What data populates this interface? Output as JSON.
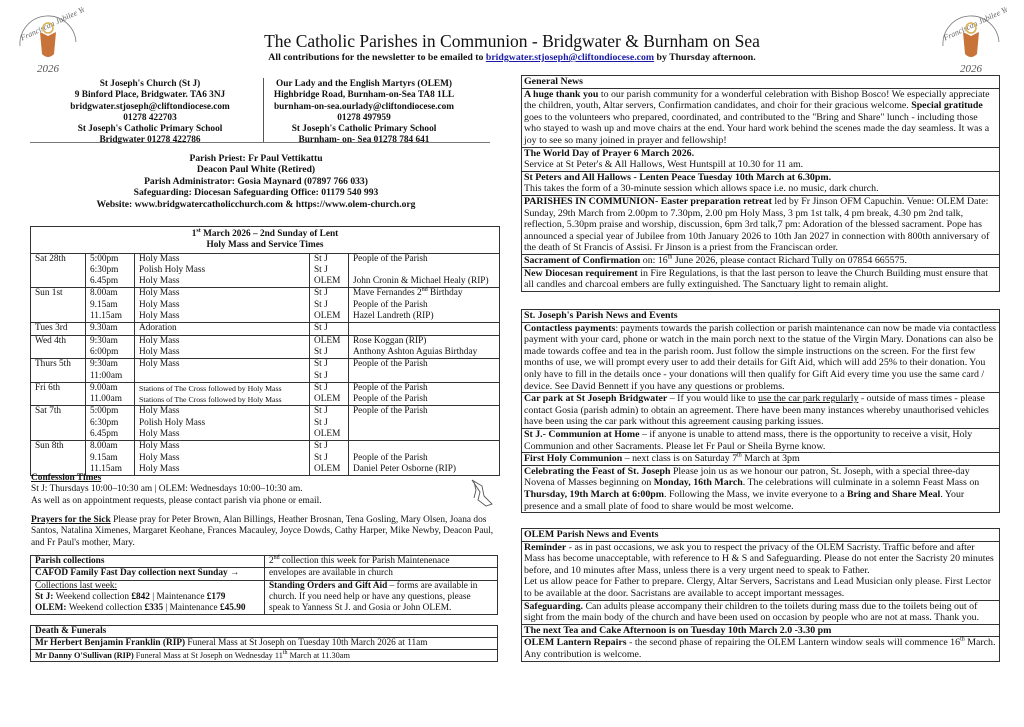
{
  "header": {
    "title": "The Catholic Parishes in Communion - Bridgwater & Burnham on Sea",
    "subtitle_before": "All contributions for the newsletter to be emailed to ",
    "subtitle_email": "bridgwater.stjoseph@cliftondiocese.com",
    "subtitle_after": " by Thursday afternoon.",
    "logo_text": "Franciscan Jubilee Year",
    "logo_year": "2026",
    "logo_color": "#c8733a"
  },
  "addresses": {
    "left": [
      "St Joseph's Church (St J)",
      "9 Binford Place, Bridgwater. TA6 3NJ",
      "bridgwater.stjoseph@cliftondiocese.com",
      "01278 422703",
      "St Joseph's Catholic Primary School",
      "Bridgwater 01278 422786"
    ],
    "right": [
      "Our Lady and the English Martyrs (OLEM)",
      "Highbridge Road, Burnham-on-Sea TA8 1LL",
      "burnham-on-sea.ourlady@cliftondiocese.com",
      "01278 497959",
      "St Joseph's Catholic Primary School",
      "Burnham- on- Sea 01278 784 641"
    ]
  },
  "clergy": [
    "Parish Priest: Fr Paul Vettikattu",
    "Deacon Paul White (Retired)",
    "Parish Administrator: Gosia Maynard (07897 766 033)",
    "Safeguarding: Diocesan Safeguarding Office: 01179 540 993",
    "Website: www.bridgwatercatholicchurch.com & https://www.olem-church.org"
  ],
  "mass_table": {
    "heading_date": "1",
    "heading_sup": "st",
    "heading_rest": " March 2026 – 2nd Sunday of Lent",
    "heading_line2": "Holy Mass and Service Times",
    "days": [
      {
        "day": "Sat 28th",
        "entries": [
          [
            "5:00pm",
            "Holy Mass",
            "St J",
            "People of the Parish"
          ],
          [
            "6:30pm",
            "Polish Holy Mass",
            "St J",
            ""
          ],
          [
            "6.45pm",
            "Holy Mass",
            "OLEM",
            "John Cronin & Michael Healy (RIP)"
          ]
        ]
      },
      {
        "day": "Sun 1st",
        "entries": [
          [
            "8.00am",
            "Holy Mass",
            "St J",
            "Mave Fernandes 2nd Birthday"
          ],
          [
            "9.15am",
            "Holy Mass",
            "St J",
            "People of the Parish"
          ],
          [
            "11.15am",
            "Holy Mass",
            "OLEM",
            "Hazel Landreth (RIP)"
          ]
        ]
      },
      {
        "day": "Tues 3rd",
        "entries": [
          [
            "9.30am",
            "Adoration",
            "St J",
            ""
          ]
        ]
      },
      {
        "day": "Wed 4th",
        "entries": [
          [
            "9:30am",
            "Holy Mass",
            "OLEM",
            "Rose Koggan (RIP)"
          ],
          [
            "6:00pm",
            "Holy Mass",
            "St J",
            "Anthony Ashton Aguias Birthday"
          ]
        ]
      },
      {
        "day": "Thurs 5th",
        "entries": [
          [
            "9:30am",
            "Holy Mass",
            "St J",
            "People of the Parish"
          ],
          [
            "11:00am",
            "",
            "St J",
            ""
          ]
        ]
      },
      {
        "day": "Fri 6th",
        "entries": [
          [
            "9.00am",
            "Stations of The Cross followed by Holy Mass",
            "St J",
            "People of the Parish"
          ],
          [
            "11.00am",
            "Stations of The Cross followed by Holy Mass",
            "OLEM",
            "People of the Parish"
          ]
        ]
      },
      {
        "day": "Sat 7th",
        "entries": [
          [
            "5:00pm",
            "Holy Mass",
            "St J",
            "People of the Parish"
          ],
          [
            "6:30pm",
            "Polish Holy Mass",
            "St J",
            ""
          ],
          [
            "6.45pm",
            "Holy Mass",
            "OLEM",
            ""
          ]
        ]
      },
      {
        "day": "Sun 8th",
        "entries": [
          [
            "8.00am",
            "Holy Mass",
            "St J",
            ""
          ],
          [
            "9.15am",
            "Holy Mass",
            "St J",
            "People of the Parish"
          ],
          [
            "11.15am",
            "Holy Mass",
            "OLEM",
            "Daniel Peter Osborne (RIP)"
          ]
        ]
      }
    ]
  },
  "confession": {
    "title": "Confession Times",
    "line1": "St J: Thursdays 10:00–10:30 am | OLEM: Wednesdays 10:00–10:30 am.",
    "line2": "As well as on appointment requests, please contact parish via phone or email."
  },
  "prayers": {
    "title": "Prayers for the Sick",
    "text": " Please pray for Peter Brown, Alan Billings, Heather Brosnan, Tena Gosling, Mary Olsen, Joana dos Santos, Natalina Ximenes, Margaret Keohane, Frances Macauley, Joyce Dowds, Cathy Harper, Mike Newby, Deacon Paul, and Fr Paul's mother, Mary."
  },
  "collections": {
    "title": "Parish collections",
    "second_collection_sup": "nd",
    "second_collection": "2",
    "second_collection_rest": " collection this week for Parish Maintenenace",
    "cafod": "CAFOD Family Fast Day collection next Sunday →",
    "envelopes": "envelopes are available in church",
    "last_week_label": "Collections last week:",
    "stj_prefix": "St J: ",
    "stj_text": "Weekend collection ",
    "stj_weekend": "£842",
    "stj_mid": " | Maintenance ",
    "stj_maint": "£179",
    "olem_prefix": "OLEM: ",
    "olem_text": "Weekend collection ",
    "olem_weekend": "£335",
    "olem_mid": " | Maintenance ",
    "olem_maint": "£45.90",
    "standing_title": "Standing Orders and Gift Aid",
    "standing_text": " – forms are available in church. If you need help or have any questions, please speak to Yanness St J. and Gosia or John OLEM."
  },
  "deaths": {
    "title": "Death & Funerals",
    "items": [
      {
        "name": "Mr Herbert Benjamin Franklin (RIP)",
        "text": " Funeral Mass at St Joseph on Tuesday 10th March 2026 at 11am",
        "sup": "",
        "after": ""
      },
      {
        "name": "Mr Danny O'Sullivan (RIP)",
        "text": " Funeral Mass at St Joseph on Wednesday 11",
        "sup": "th",
        "after": " March at 11.30am"
      }
    ]
  },
  "general_news": {
    "title": "General News",
    "items": [
      [
        {
          "s": "b",
          "t": "A huge thank you"
        },
        {
          "t": " to our parish community for a wonderful celebration with Bishop Bosco! We especially appreciate the children, youth, Altar servers, Confirmation candidates, and choir for their gracious welcome. "
        },
        {
          "s": "b",
          "t": "Special gratitude"
        },
        {
          "t": " goes to the volunteers who prepared, coordinated, and contributed to the \"Bring and Share\" lunch - including those who stayed to wash up and move chairs at the end. Your hard work behind the scenes made the day seamless. It was a joy to see so many joined in prayer and fellowship!"
        }
      ],
      [
        {
          "s": "b",
          "t": "The World Day of Prayer 6 March 2026."
        },
        {
          "s": "br"
        },
        {
          "t": "Service at St Peter's & All Hallows, West Huntspill at 10.30 for 11 am."
        }
      ],
      [
        {
          "s": "b",
          "t": "St Peters and All Hallows - Lenten Peace Tuesday 10th March at 6.30pm."
        },
        {
          "s": "br"
        },
        {
          "t": "This takes the form of a 30-minute session which allows space i.e. no music, dark church."
        }
      ],
      [
        {
          "s": "b",
          "t": "PARISHES IN COMMUNION- Easter preparation retreat"
        },
        {
          "t": " led by Fr Jinson OFM Capuchin. Venue: OLEM Date: Sunday, 29th March from 2.00pm to 7.30pm, 2.00 pm Holy Mass, 3 pm 1st talk, 4 pm break, 4.30 pm 2nd talk, reflection, 5.30pm praise and worship, discussion, 6pm 3rd talk,7 pm: Adoration of the blessed sacrament. Pope has announced a special year of Jubilee from 10th January 2026 to 10th Jan 2027 in connection with 800th anniversary of the death of St Francis of Assisi. Fr Jinson is a priest from the Franciscan order."
        }
      ],
      [
        {
          "s": "b",
          "t": "Sacrament of Confirmation"
        },
        {
          "t": " on: 16"
        },
        {
          "s": "sup",
          "t": "th"
        },
        {
          "t": " June 2026, please contact Richard Tully on 07854 665575."
        }
      ],
      [
        {
          "s": "b",
          "t": "New Diocesan requirement"
        },
        {
          "t": " in Fire Regulations, is that the last person to leave the Church Building must ensure that all candles and charcoal embers are fully extinguished. The Sanctuary light to remain alight."
        }
      ]
    ]
  },
  "stjoseph_news": {
    "title": "St. Joseph's Parish News and Events",
    "items": [
      [
        {
          "s": "b",
          "t": "Contactless payments"
        },
        {
          "t": ": payments towards the parish collection or parish maintenance can now be made via contactless payment with your card, phone or watch in the main porch next to the statue of the Virgin Mary. Donations can also be made towards coffee and tea in the parish room. Just follow the simple instructions on the screen. For the first few months of use, we will prompt every user to add their details for Gift Aid, which will add 25% to their donation. You only have to fill in the details once - your donations will then qualify for Gift Aid every time you use the same card / device. See David Bennett if you have any questions or problems."
        }
      ],
      [
        {
          "s": "b",
          "t": "Car park at St Joseph Bridgwater"
        },
        {
          "t": " – If you would like to "
        },
        {
          "s": "u",
          "t": "use the car park regularly"
        },
        {
          "t": " - outside of mass times - please contact Gosia (parish admin) to obtain an agreement. There have been many instances whereby unauthorised vehicles have been using the car park without this agreement causing parking issues."
        }
      ],
      [
        {
          "s": "b",
          "t": "St J.- Communion at Home"
        },
        {
          "t": " – if anyone is unable to attend mass, there is the opportunity to receive a visit, Holy Communion and other Sacraments. Please let Fr Paul or Sheila Byrne know."
        }
      ],
      [
        {
          "s": "b",
          "t": "First Holy Communion"
        },
        {
          "t": " – next class is on Saturday 7"
        },
        {
          "s": "sup",
          "t": "th"
        },
        {
          "t": " March at 3pm"
        }
      ],
      [
        {
          "s": "b",
          "t": "Celebrating the Feast of St. Joseph"
        },
        {
          "t": " Please join us as we honour our patron, St. Joseph, with a special three-day Novena of Masses beginning on "
        },
        {
          "s": "b",
          "t": "Monday, 16th March"
        },
        {
          "t": ". The celebrations will culminate in a solemn Feast Mass on "
        },
        {
          "s": "b",
          "t": "Thursday, 19th March at 6:00pm"
        },
        {
          "t": ". Following the Mass, we invite everyone to a "
        },
        {
          "s": "b",
          "t": "Bring and Share Meal"
        },
        {
          "t": ". Your presence and a small plate of food to share would be most welcome."
        }
      ]
    ]
  },
  "olem_news": {
    "title": "OLEM Parish News and Events",
    "items": [
      [
        {
          "s": "b",
          "t": "Reminder"
        },
        {
          "t": " - as in past occasions, we ask you to respect the privacy of the OLEM Sacristy. Traffic before and after Mass has become unacceptable, with reference to H & S and Safeguarding. Please do not enter the Sacristy 20 minutes before, and 10 minutes after Mass, unless there is a very urgent need to speak to Father."
        },
        {
          "s": "br"
        },
        {
          "t": "Let us allow peace for Father to prepare. Clergy, Altar Servers, Sacristans and Lead Musician only please. First Lector to be available at the door. Sacristans are available to accept important messages."
        }
      ],
      [
        {
          "s": "b",
          "t": "Safeguarding."
        },
        {
          "t": " Can adults please accompany their children to the toilets during mass due to the toilets being out of sight from the main body of the church and have been used on occasion by people who are not at mass. Thank you."
        }
      ],
      [
        {
          "s": "b",
          "t": "The next Tea and Cake Afternoon is on Tuesday 10th March 2.0 -3.30 pm"
        }
      ],
      [
        {
          "s": "b",
          "t": "OLEM Lantern Repairs"
        },
        {
          "t": " - the second phase of repairing the OLEM Lantern window seals will commence 16"
        },
        {
          "s": "sup",
          "t": "th"
        },
        {
          "t": " March. Any contribution is welcome."
        }
      ]
    ]
  }
}
